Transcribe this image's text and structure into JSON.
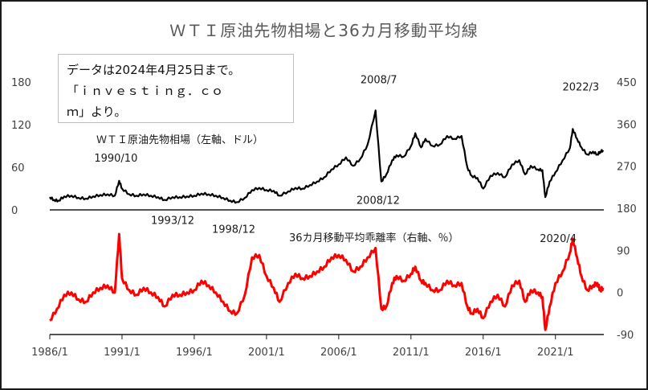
{
  "chart_data": {
    "title": "ＷＴＩ原油先物相場と36カ月移動平均線",
    "type": "line",
    "note_lines": [
      "データは2024年4月25日まで。",
      "「ｉｎｖｅｓｔｉｎｇ．ｃｏ",
      "ｍ」より。"
    ],
    "x_ticks": [
      "1986/1",
      "1991/1",
      "1996/1",
      "2001/1",
      "2006/1",
      "2011/1",
      "2016/1",
      "2021/1"
    ],
    "x_range": [
      1986.0,
      2024.35
    ],
    "left_axis": {
      "ticks": [
        "0",
        "60",
        "120",
        "180"
      ],
      "range": [
        0,
        180
      ],
      "unit": "ドル"
    },
    "right_axis": {
      "ticks": [
        "-90",
        "0",
        "90",
        "180",
        "270",
        "360",
        "450"
      ],
      "range": [
        -90,
        450
      ]
    },
    "annotations": [
      {
        "text": "1990/10",
        "x": 1990.8,
        "y": 41,
        "series": "price"
      },
      {
        "text": "1993/12",
        "x": 1993.95,
        "y": 14,
        "series": "price"
      },
      {
        "text": "1998/12",
        "x": 1998.95,
        "y": 11,
        "series": "price"
      },
      {
        "text": "2008/7",
        "x": 2008.55,
        "y": 140,
        "series": "price"
      },
      {
        "text": "2008/12",
        "x": 2008.95,
        "y": 40,
        "series": "price"
      },
      {
        "text": "2020/4",
        "x": 2020.3,
        "y": 18,
        "series": "price"
      },
      {
        "text": "2022/3",
        "x": 2022.2,
        "y": 114,
        "series": "price"
      }
    ],
    "series": [
      {
        "name": "ＷＴＩ原油先物相場（左軸、ドル）",
        "key": "price",
        "color": "#000000",
        "axis": "left",
        "x": [
          1986.0,
          1986.3,
          1986.6,
          1987.0,
          1987.5,
          1988.0,
          1988.5,
          1989.0,
          1989.5,
          1990.0,
          1990.5,
          1990.8,
          1991.0,
          1991.5,
          1992.0,
          1992.5,
          1993.0,
          1993.5,
          1993.95,
          1994.5,
          1995.0,
          1995.5,
          1996.0,
          1996.5,
          1997.0,
          1997.5,
          1998.0,
          1998.5,
          1998.95,
          1999.5,
          2000.0,
          2000.5,
          2001.0,
          2001.5,
          2001.9,
          2002.5,
          2003.0,
          2003.5,
          2004.0,
          2004.5,
          2005.0,
          2005.5,
          2006.0,
          2006.5,
          2007.0,
          2007.5,
          2008.0,
          2008.55,
          2008.95,
          2009.3,
          2009.7,
          2010.0,
          2010.5,
          2011.0,
          2011.3,
          2011.7,
          2012.0,
          2012.5,
          2013.0,
          2013.5,
          2014.0,
          2014.5,
          2014.9,
          2015.2,
          2015.6,
          2016.0,
          2016.5,
          2017.0,
          2017.5,
          2018.0,
          2018.5,
          2018.9,
          2019.3,
          2019.8,
          2020.1,
          2020.3,
          2020.6,
          2021.0,
          2021.5,
          2022.0,
          2022.2,
          2022.5,
          2022.8,
          2023.2,
          2023.6,
          2023.9,
          2024.1,
          2024.3
        ],
        "y": [
          18,
          14,
          13,
          19,
          20,
          17,
          16,
          19,
          21,
          22,
          20,
          41,
          30,
          22,
          20,
          22,
          20,
          18,
          14,
          18,
          18,
          19,
          20,
          23,
          22,
          20,
          17,
          13,
          11,
          17,
          28,
          31,
          28,
          27,
          20,
          26,
          31,
          30,
          35,
          40,
          46,
          57,
          64,
          74,
          62,
          72,
          92,
          140,
          40,
          50,
          70,
          77,
          75,
          90,
          108,
          88,
          100,
          90,
          92,
          104,
          100,
          104,
          60,
          48,
          45,
          30,
          48,
          52,
          46,
          64,
          70,
          50,
          62,
          57,
          56,
          18,
          40,
          53,
          70,
          87,
          114,
          100,
          88,
          78,
          82,
          78,
          82,
          84
        ]
      },
      {
        "name": "36カ月移動平均乖離率（右軸、％）",
        "key": "dev",
        "color": "#ff0000",
        "axis": "right",
        "x": [
          1986.0,
          1986.5,
          1987.0,
          1987.5,
          1988.0,
          1988.5,
          1989.0,
          1989.5,
          1990.0,
          1990.5,
          1990.8,
          1991.0,
          1991.5,
          1992.0,
          1992.5,
          1993.0,
          1993.5,
          1993.95,
          1994.5,
          1995.0,
          1995.5,
          1996.0,
          1996.5,
          1997.0,
          1997.5,
          1998.0,
          1998.5,
          1998.95,
          1999.5,
          2000.0,
          2000.5,
          2001.0,
          2001.5,
          2001.9,
          2002.5,
          2003.0,
          2003.5,
          2004.0,
          2004.5,
          2005.0,
          2005.5,
          2006.0,
          2006.5,
          2007.0,
          2007.5,
          2008.0,
          2008.55,
          2008.95,
          2009.3,
          2009.7,
          2010.0,
          2010.5,
          2011.0,
          2011.3,
          2011.7,
          2012.0,
          2012.5,
          2013.0,
          2013.5,
          2014.0,
          2014.5,
          2014.9,
          2015.2,
          2015.6,
          2016.0,
          2016.5,
          2017.0,
          2017.5,
          2018.0,
          2018.5,
          2018.9,
          2019.3,
          2019.8,
          2020.1,
          2020.3,
          2020.6,
          2021.0,
          2021.5,
          2022.0,
          2022.2,
          2022.5,
          2022.8,
          2023.2,
          2023.6,
          2023.9,
          2024.1,
          2024.3
        ],
        "y": [
          -60,
          -35,
          -5,
          0,
          -15,
          -20,
          0,
          10,
          15,
          0,
          125,
          30,
          5,
          -5,
          10,
          0,
          -10,
          -30,
          -5,
          -5,
          0,
          5,
          25,
          15,
          0,
          -20,
          -40,
          -45,
          -5,
          75,
          80,
          35,
          10,
          -20,
          20,
          40,
          30,
          35,
          45,
          55,
          75,
          80,
          70,
          45,
          55,
          75,
          95,
          -35,
          -30,
          20,
          35,
          25,
          40,
          55,
          25,
          20,
          5,
          5,
          25,
          15,
          20,
          -30,
          -45,
          -35,
          -55,
          -20,
          -5,
          -30,
          15,
          25,
          -20,
          5,
          0,
          -10,
          -80,
          -30,
          20,
          45,
          85,
          115,
          75,
          35,
          5,
          15,
          20,
          5,
          10
        ]
      }
    ]
  }
}
